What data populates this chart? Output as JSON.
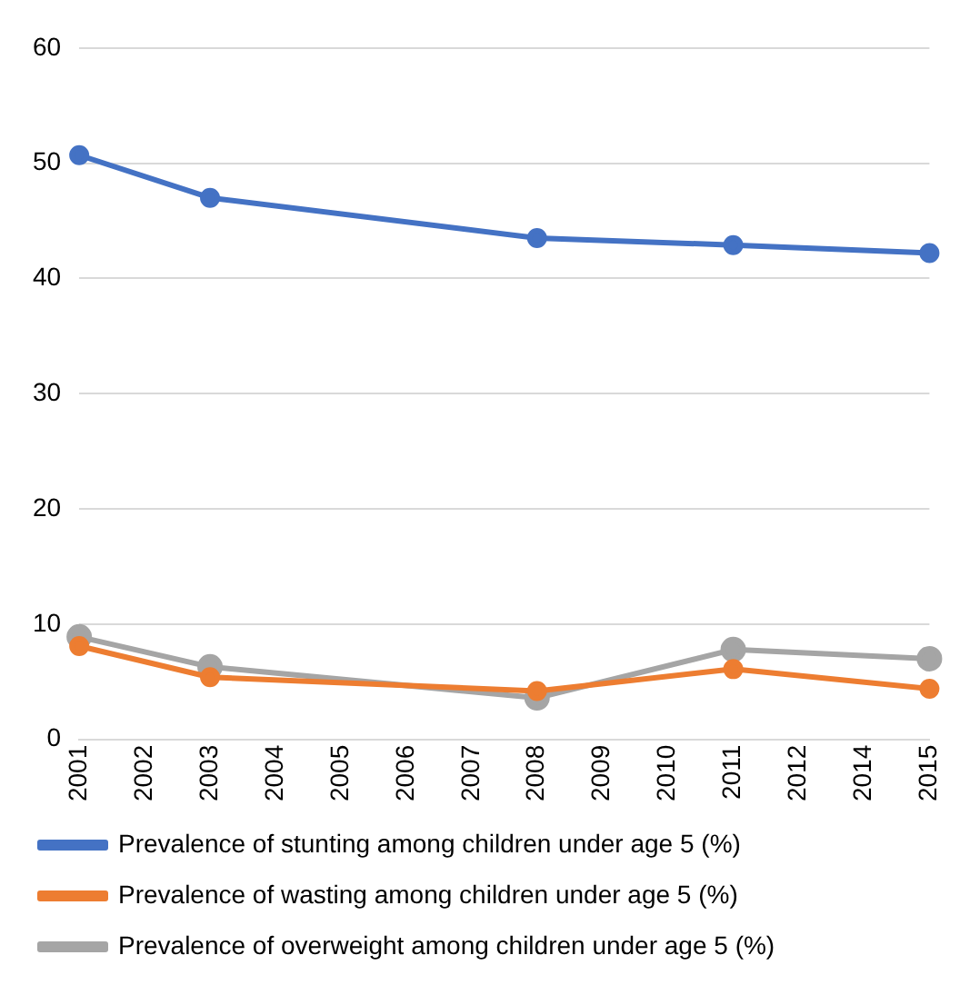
{
  "chart_data": {
    "type": "line",
    "categories": [
      "2001",
      "2002",
      "2003",
      "2004",
      "2005",
      "2006",
      "2007",
      "2008",
      "2009",
      "2010",
      "2011",
      "2012",
      "2014",
      "2015"
    ],
    "series": [
      {
        "name": "Prevalence of stunting among children under age 5 (%)",
        "color": "#4472c4",
        "values": [
          50.7,
          null,
          47.0,
          null,
          null,
          null,
          null,
          43.5,
          null,
          null,
          42.9,
          null,
          null,
          42.2
        ]
      },
      {
        "name": "Prevalence of wasting among children under age 5 (%)",
        "color": "#ed7d31",
        "values": [
          8.1,
          null,
          5.4,
          null,
          null,
          null,
          null,
          4.2,
          null,
          null,
          6.1,
          null,
          null,
          4.4
        ]
      },
      {
        "name": "Prevalence of overweight among children under age 5 (%)",
        "color": "#a5a5a5",
        "values": [
          8.9,
          null,
          6.3,
          null,
          null,
          null,
          null,
          3.6,
          null,
          null,
          7.8,
          null,
          null,
          7.0
        ]
      }
    ],
    "ylim": [
      0,
      60
    ],
    "yticks": [
      0,
      10,
      20,
      30,
      40,
      50,
      60
    ],
    "grid": "y",
    "legend": "bottom",
    "marker": "circle",
    "line_style": "solid"
  }
}
